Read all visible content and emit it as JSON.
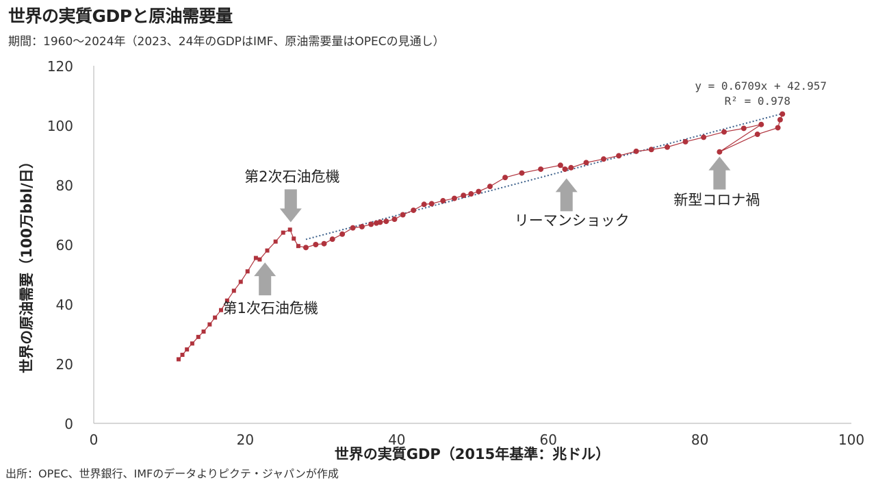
{
  "title": "世界の実質GDPと原油需要量",
  "subtitle": "期間：1960～2024年（2023、24年のGDPはIMF、原油需要量はOPECの見通し）",
  "source": "出所：OPEC、世界銀行、IMFのデータよりピクテ・ジャパンが作成",
  "colors": {
    "series": "#b0333d",
    "trend": "#3b5f8a",
    "arrow": "#a6a6a6",
    "axis": "#bfbfbf"
  },
  "chart_data": {
    "type": "scatter",
    "xlabel": "世界の実質GDP（2015年基準：兆ドル）",
    "ylabel": "世界の原油需要（100万bbl/日）",
    "xlim": [
      0,
      100
    ],
    "ylim": [
      0,
      120
    ],
    "xticks": [
      0,
      20,
      40,
      60,
      80,
      100
    ],
    "yticks": [
      0,
      20,
      40,
      60,
      80,
      100,
      120
    ],
    "grid": false,
    "series": [
      {
        "marker": "square",
        "points": [
          [
            11.2,
            21.5
          ],
          [
            11.7,
            23.0
          ],
          [
            12.3,
            24.8
          ],
          [
            13.0,
            26.8
          ],
          [
            13.8,
            29.0
          ],
          [
            14.5,
            30.8
          ],
          [
            15.3,
            33.2
          ],
          [
            16.0,
            35.5
          ],
          [
            16.8,
            38.0
          ],
          [
            17.6,
            41.2
          ],
          [
            18.5,
            44.5
          ],
          [
            19.4,
            47.5
          ],
          [
            20.3,
            51.0
          ],
          [
            21.4,
            55.5
          ],
          [
            21.9,
            55.0
          ],
          [
            22.9,
            58.0
          ],
          [
            24.0,
            61.0
          ],
          [
            25.0,
            64.0
          ],
          [
            25.9,
            65.0
          ],
          [
            26.4,
            62.0
          ],
          [
            27.0,
            59.5
          ]
        ]
      },
      {
        "marker": "circle",
        "points": [
          [
            28.0,
            59.0
          ],
          [
            29.3,
            60.0
          ],
          [
            30.4,
            60.3
          ],
          [
            31.5,
            61.8
          ],
          [
            32.8,
            63.5
          ],
          [
            34.2,
            65.6
          ],
          [
            35.4,
            66.0
          ],
          [
            36.6,
            66.8
          ],
          [
            37.3,
            67.2
          ],
          [
            37.8,
            67.5
          ],
          [
            38.6,
            67.8
          ],
          [
            39.7,
            68.5
          ],
          [
            40.8,
            70.0
          ],
          [
            42.2,
            71.5
          ],
          [
            43.6,
            73.5
          ],
          [
            44.6,
            73.7
          ],
          [
            46.1,
            74.7
          ],
          [
            47.6,
            75.5
          ],
          [
            48.8,
            76.5
          ],
          [
            49.8,
            77.0
          ],
          [
            50.8,
            77.8
          ],
          [
            52.3,
            79.5
          ],
          [
            54.3,
            82.5
          ],
          [
            56.5,
            84.0
          ],
          [
            59.0,
            85.3
          ],
          [
            61.6,
            86.6
          ],
          [
            62.2,
            85.3
          ],
          [
            63.0,
            85.8
          ],
          [
            65.0,
            87.5
          ],
          [
            67.3,
            88.7
          ],
          [
            69.3,
            89.8
          ],
          [
            71.6,
            91.3
          ],
          [
            73.6,
            91.9
          ],
          [
            75.7,
            92.7
          ],
          [
            78.1,
            94.5
          ],
          [
            80.5,
            96.0
          ],
          [
            83.2,
            97.8
          ],
          [
            85.8,
            99.0
          ],
          [
            88.1,
            100.3
          ],
          [
            82.6,
            91.1
          ],
          [
            87.6,
            97.0
          ],
          [
            90.3,
            99.2
          ],
          [
            90.6,
            101.9
          ],
          [
            90.9,
            103.8
          ]
        ]
      }
    ],
    "trendline": {
      "slope": 0.6709,
      "intercept": 42.957,
      "x_range": [
        28.0,
        90.9
      ]
    },
    "trend_equation": "y = 0.6709x + 42.957",
    "trend_r2": "R² = 0.978",
    "annotations": [
      {
        "label": "第1次石油危機",
        "x": 22.6,
        "y": 54.0,
        "direction": "up"
      },
      {
        "label": "第2次石油危機",
        "x": 26.0,
        "y": 67.5,
        "direction": "down"
      },
      {
        "label": "リーマンショック",
        "x": 62.4,
        "y": 82.2,
        "direction": "up"
      },
      {
        "label": "新型コロナ禍",
        "x": 82.6,
        "y": 89.5,
        "direction": "up"
      }
    ]
  }
}
